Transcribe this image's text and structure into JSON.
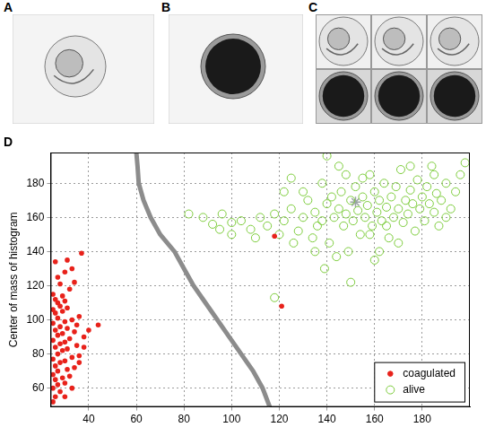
{
  "panel_labels": [
    "A",
    "B",
    "C",
    "D"
  ],
  "chart_data": {
    "type": "scatter",
    "y_label": "Center of mass of histogram",
    "xlim": [
      24,
      200
    ],
    "xticks": [
      40,
      60,
      80,
      100,
      120,
      140,
      160,
      180
    ],
    "ylim": [
      49,
      198
    ],
    "yticks": [
      60,
      80,
      100,
      120,
      140,
      160,
      180
    ],
    "grid": true,
    "legend": "lower right",
    "series": [
      {
        "type": "line",
        "color": "#8c8c8c",
        "line_style": "solid",
        "values": [
          [
            60,
            198
          ],
          [
            60.5,
            190
          ],
          [
            61,
            180
          ],
          [
            63,
            170
          ],
          [
            66,
            160
          ],
          [
            70,
            150
          ],
          [
            76,
            140
          ],
          [
            80,
            130
          ],
          [
            84,
            120
          ],
          [
            89,
            110
          ],
          [
            94,
            100
          ],
          [
            99,
            90
          ],
          [
            104,
            80
          ],
          [
            109,
            70
          ],
          [
            113,
            60
          ],
          [
            116,
            49
          ]
        ]
      },
      {
        "name": "coagulated",
        "color": "#e8221b",
        "marker": "circle",
        "values": [
          [
            25,
            52
          ],
          [
            26,
            55
          ],
          [
            28,
            58
          ],
          [
            25,
            60
          ],
          [
            27,
            62
          ],
          [
            30,
            63
          ],
          [
            26,
            65
          ],
          [
            29,
            66
          ],
          [
            32,
            67
          ],
          [
            25,
            68
          ],
          [
            27,
            70
          ],
          [
            31,
            71
          ],
          [
            34,
            72
          ],
          [
            26,
            73
          ],
          [
            28,
            75
          ],
          [
            30,
            76
          ],
          [
            25,
            77
          ],
          [
            33,
            78
          ],
          [
            36,
            79
          ],
          [
            27,
            80
          ],
          [
            29,
            82
          ],
          [
            31,
            83
          ],
          [
            26,
            84
          ],
          [
            35,
            85
          ],
          [
            28,
            86
          ],
          [
            30,
            87
          ],
          [
            25,
            88
          ],
          [
            32,
            89
          ],
          [
            38,
            90
          ],
          [
            27,
            91
          ],
          [
            29,
            92
          ],
          [
            34,
            93
          ],
          [
            26,
            94
          ],
          [
            31,
            95
          ],
          [
            44,
            97
          ],
          [
            28,
            96
          ],
          [
            25,
            98
          ],
          [
            30,
            99
          ],
          [
            33,
            100
          ],
          [
            27,
            101
          ],
          [
            36,
            102
          ],
          [
            26,
            104
          ],
          [
            29,
            105
          ],
          [
            25,
            106
          ],
          [
            31,
            107
          ],
          [
            28,
            108
          ],
          [
            27,
            110
          ],
          [
            30,
            111
          ],
          [
            26,
            112
          ],
          [
            29,
            114
          ],
          [
            25,
            115
          ],
          [
            32,
            118
          ],
          [
            28,
            121
          ],
          [
            34,
            122
          ],
          [
            27,
            125
          ],
          [
            30,
            128
          ],
          [
            33,
            130
          ],
          [
            26,
            134
          ],
          [
            31,
            135
          ],
          [
            37,
            139
          ],
          [
            40,
            94
          ],
          [
            35,
            97
          ],
          [
            38,
            84
          ],
          [
            36,
            75
          ],
          [
            33,
            60
          ],
          [
            30,
            55
          ],
          [
            118,
            149
          ],
          [
            121,
            108
          ]
        ]
      },
      {
        "name": "alive",
        "color": "#7dcc3c",
        "marker": "open_circle",
        "values": [
          [
            82,
            162
          ],
          [
            88,
            160
          ],
          [
            92,
            156
          ],
          [
            95,
            153
          ],
          [
            100,
            157
          ],
          [
            104,
            158
          ],
          [
            108,
            153
          ],
          [
            112,
            160
          ],
          [
            110,
            148
          ],
          [
            115,
            155
          ],
          [
            118,
            162
          ],
          [
            120,
            150
          ],
          [
            118,
            113
          ],
          [
            122,
            158
          ],
          [
            125,
            165
          ],
          [
            126,
            145
          ],
          [
            128,
            152
          ],
          [
            130,
            160
          ],
          [
            132,
            170
          ],
          [
            134,
            148
          ],
          [
            135,
            163
          ],
          [
            136,
            155
          ],
          [
            138,
            158
          ],
          [
            139,
            130
          ],
          [
            140,
            168
          ],
          [
            141,
            145
          ],
          [
            142,
            172
          ],
          [
            143,
            160
          ],
          [
            144,
            137
          ],
          [
            145,
            165
          ],
          [
            146,
            175
          ],
          [
            147,
            155
          ],
          [
            148,
            162
          ],
          [
            149,
            140
          ],
          [
            150,
            170
          ],
          [
            151,
            158
          ],
          [
            152,
            178
          ],
          [
            153,
            164
          ],
          [
            154,
            150
          ],
          [
            155,
            172
          ],
          [
            156,
            160
          ],
          [
            157,
            167
          ],
          [
            158,
            185
          ],
          [
            159,
            155
          ],
          [
            160,
            175
          ],
          [
            161,
            163
          ],
          [
            162,
            170
          ],
          [
            163,
            158
          ],
          [
            164,
            180
          ],
          [
            165,
            166
          ],
          [
            166,
            148
          ],
          [
            167,
            172
          ],
          [
            168,
            160
          ],
          [
            169,
            178
          ],
          [
            170,
            165
          ],
          [
            171,
            188
          ],
          [
            172,
            157
          ],
          [
            173,
            170
          ],
          [
            174,
            162
          ],
          [
            175,
            176
          ],
          [
            176,
            168
          ],
          [
            177,
            152
          ],
          [
            178,
            182
          ],
          [
            179,
            165
          ],
          [
            180,
            172
          ],
          [
            181,
            158
          ],
          [
            182,
            178
          ],
          [
            183,
            168
          ],
          [
            184,
            190
          ],
          [
            185,
            163
          ],
          [
            186,
            174
          ],
          [
            187,
            155
          ],
          [
            188,
            170
          ],
          [
            190,
            180
          ],
          [
            192,
            165
          ],
          [
            194,
            175
          ],
          [
            196,
            185
          ],
          [
            198,
            192
          ],
          [
            150,
            122
          ],
          [
            160,
            135
          ],
          [
            162,
            140
          ],
          [
            155,
            183
          ],
          [
            145,
            190
          ],
          [
            138,
            180
          ],
          [
            130,
            175
          ],
          [
            125,
            183
          ],
          [
            140,
            196
          ],
          [
            170,
            145
          ],
          [
            165,
            155
          ],
          [
            158,
            150
          ],
          [
            148,
            185
          ],
          [
            135,
            140
          ],
          [
            100,
            150
          ],
          [
            96,
            162
          ],
          [
            122,
            175
          ],
          [
            175,
            190
          ],
          [
            185,
            185
          ],
          [
            190,
            160
          ]
        ]
      },
      {
        "color": "#9aa3a3",
        "marker": "star",
        "values": [
          [
            152,
            169
          ]
        ]
      }
    ]
  }
}
